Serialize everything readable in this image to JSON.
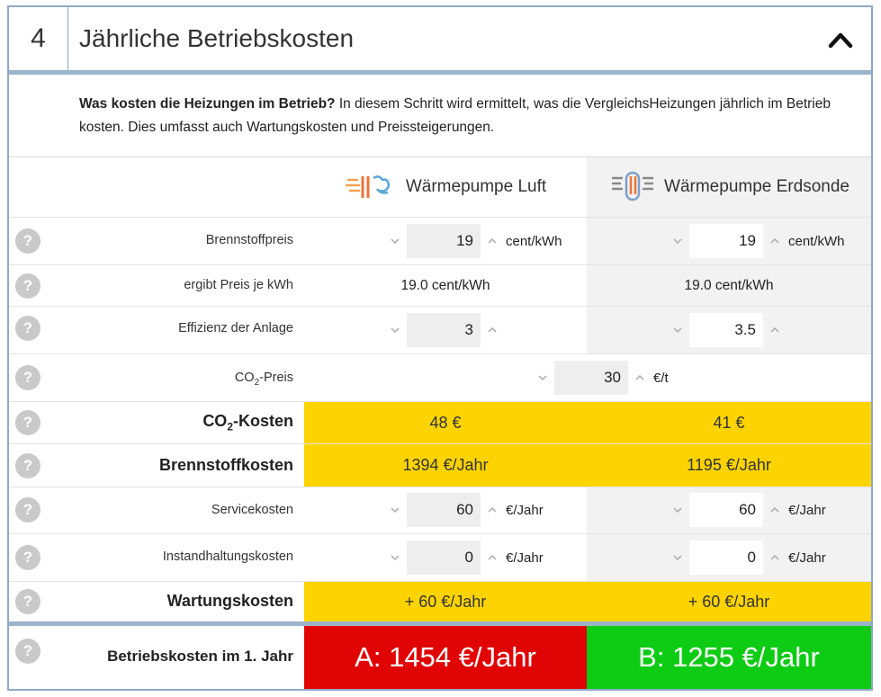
{
  "header": {
    "step_number": "4",
    "title": "Jährliche Betriebskosten",
    "collapse_icon": "chevron-up-icon"
  },
  "intro": {
    "bold": "Was kosten die Heizungen im Betrieb?",
    "text": " In diesem Schritt wird ermittelt, was die VergleichsHeizungen jährlich im Betrieb kosten. Dies umfasst auch Wartungskosten und Preissteigerungen."
  },
  "columns": {
    "a": {
      "name": "Wärmepumpe Luft",
      "icon": "heat-pump-air-icon"
    },
    "b": {
      "name": "Wärmepumpe Erdsonde",
      "icon": "heat-pump-ground-probe-icon"
    }
  },
  "help_label": "?",
  "rows": {
    "brennstoffpreis": {
      "label": "Brennstoffpreis",
      "a_value": "19",
      "b_value": "19",
      "unit": "cent/kWh"
    },
    "preis_je_kwh": {
      "label": "ergibt Preis je kWh",
      "a_value": "19.0 cent/kWh",
      "b_value": "19.0 cent/kWh"
    },
    "effizienz": {
      "label": "Effizienz der Anlage",
      "a_value": "3",
      "b_value": "3.5"
    },
    "co2_preis": {
      "label_prefix": "CO",
      "label_sub": "2",
      "label_suffix": "-Preis",
      "value": "30",
      "unit": "€/t"
    },
    "co2_kosten": {
      "label_prefix": "CO",
      "label_sub": "2",
      "label_suffix": "-Kosten",
      "a_value": "48 €",
      "b_value": "41 €"
    },
    "brennstoffkosten": {
      "label": "Brennstoffkosten",
      "a_value": "1394 €/Jahr",
      "b_value": "1195 €/Jahr"
    },
    "servicekosten": {
      "label": "Servicekosten",
      "a_value": "60",
      "b_value": "60",
      "unit": "€/Jahr"
    },
    "instandhaltung": {
      "label": "Instandhaltungskosten",
      "a_value": "0",
      "b_value": "0",
      "unit": "€/Jahr"
    },
    "wartungskosten": {
      "label": "Wartungskosten",
      "a_value": "+ 60 €/Jahr",
      "b_value": "+ 60 €/Jahr"
    }
  },
  "totals": {
    "label": "Betriebskosten im 1. Jahr",
    "a_value": "A: 1454 €/Jahr",
    "b_value": "B: 1255 €/Jahr"
  },
  "colors": {
    "accent_border": "#9bb4cc",
    "highlight_yellow": "#fdd401",
    "total_a_red": "#e00404",
    "total_b_green": "#0ecb14"
  }
}
